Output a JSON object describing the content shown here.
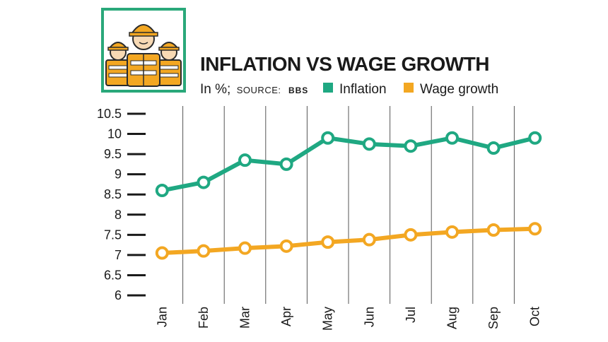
{
  "header": {
    "title": "INFLATION VS WAGE GROWTH",
    "unit_prefix": "In %;",
    "source_label": "SOURCE:",
    "source_name": "BBS"
  },
  "chart_data": {
    "type": "line",
    "title": "INFLATION VS WAGE GROWTH",
    "xlabel": "",
    "ylabel": "",
    "categories": [
      "Jan",
      "Feb",
      "Mar",
      "Apr",
      "May",
      "Jun",
      "Jul",
      "Aug",
      "Sep",
      "Oct"
    ],
    "yticks": [
      "6",
      "6.5",
      "7",
      "7.5",
      "8",
      "8.5",
      "9",
      "9.5",
      "10",
      "10.5"
    ],
    "ylim": [
      6,
      10.5
    ],
    "grid": "vertical",
    "legend_position": "top",
    "series": [
      {
        "name": "Inflation",
        "color": "#1fa882",
        "values": [
          8.6,
          8.8,
          9.35,
          9.25,
          9.9,
          9.75,
          9.7,
          9.9,
          9.65,
          9.9
        ]
      },
      {
        "name": "Wage growth",
        "color": "#f3a722",
        "values": [
          7.05,
          7.1,
          7.17,
          7.22,
          7.32,
          7.38,
          7.5,
          7.57,
          7.62,
          7.65
        ]
      }
    ]
  },
  "icon": {
    "name": "construction-workers-icon",
    "border_color": "#2aa87a"
  }
}
